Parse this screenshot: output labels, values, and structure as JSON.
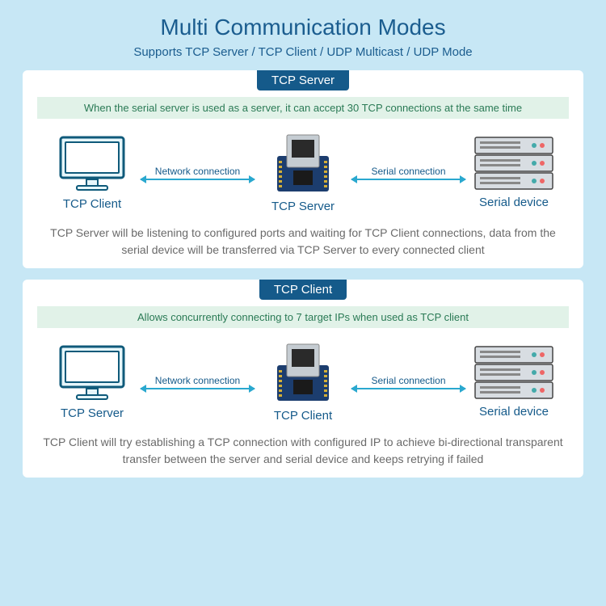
{
  "palette": {
    "page_bg": "#c7e7f5",
    "title_color": "#1b5d8f",
    "subtitle_color": "#1b5d8f",
    "badge_bg": "#155a8a",
    "desc_bar_bg": "#e1f2e8",
    "desc_bar_color": "#2a7a55",
    "node_label_color": "#155a8a",
    "arrow_label_color": "#155a8a",
    "arrow_color": "#2aa8cf",
    "footer_color": "#6a6a6a",
    "monitor_outline": "#0f5a7a",
    "monitor_fill": "#e6f6fb",
    "module_board": "#1c3d6e",
    "module_jack": "#c5ccd2",
    "server_outline": "#444444",
    "server_fill": "#d8dde2"
  },
  "header": {
    "title": "Multi Communication Modes",
    "subtitle": "Supports TCP Server / TCP Client / UDP Multicast / UDP Mode"
  },
  "panels": [
    {
      "badge": "TCP Server",
      "desc": "When the serial server is used as a server, it can accept 30 TCP connections at the same time",
      "left_label": "TCP Client",
      "mid_label": "TCP Server",
      "right_label": "Serial device",
      "arrow1": "Network connection",
      "arrow2": "Serial connection",
      "footer": "TCP Server will be listening to configured ports and waiting for TCP Client connections, data from the serial device will be transferred via TCP Server to every connected client"
    },
    {
      "badge": "TCP Client",
      "desc": "Allows concurrently connecting to 7 target IPs when used as TCP client",
      "left_label": "TCP Server",
      "mid_label": "TCP Client",
      "right_label": "Serial device",
      "arrow1": "Network connection",
      "arrow2": "Serial connection",
      "footer": "TCP Client will try establishing a TCP connection with configured IP to achieve bi-directional transparent transfer between the server and serial device and keeps retrying if failed"
    }
  ]
}
